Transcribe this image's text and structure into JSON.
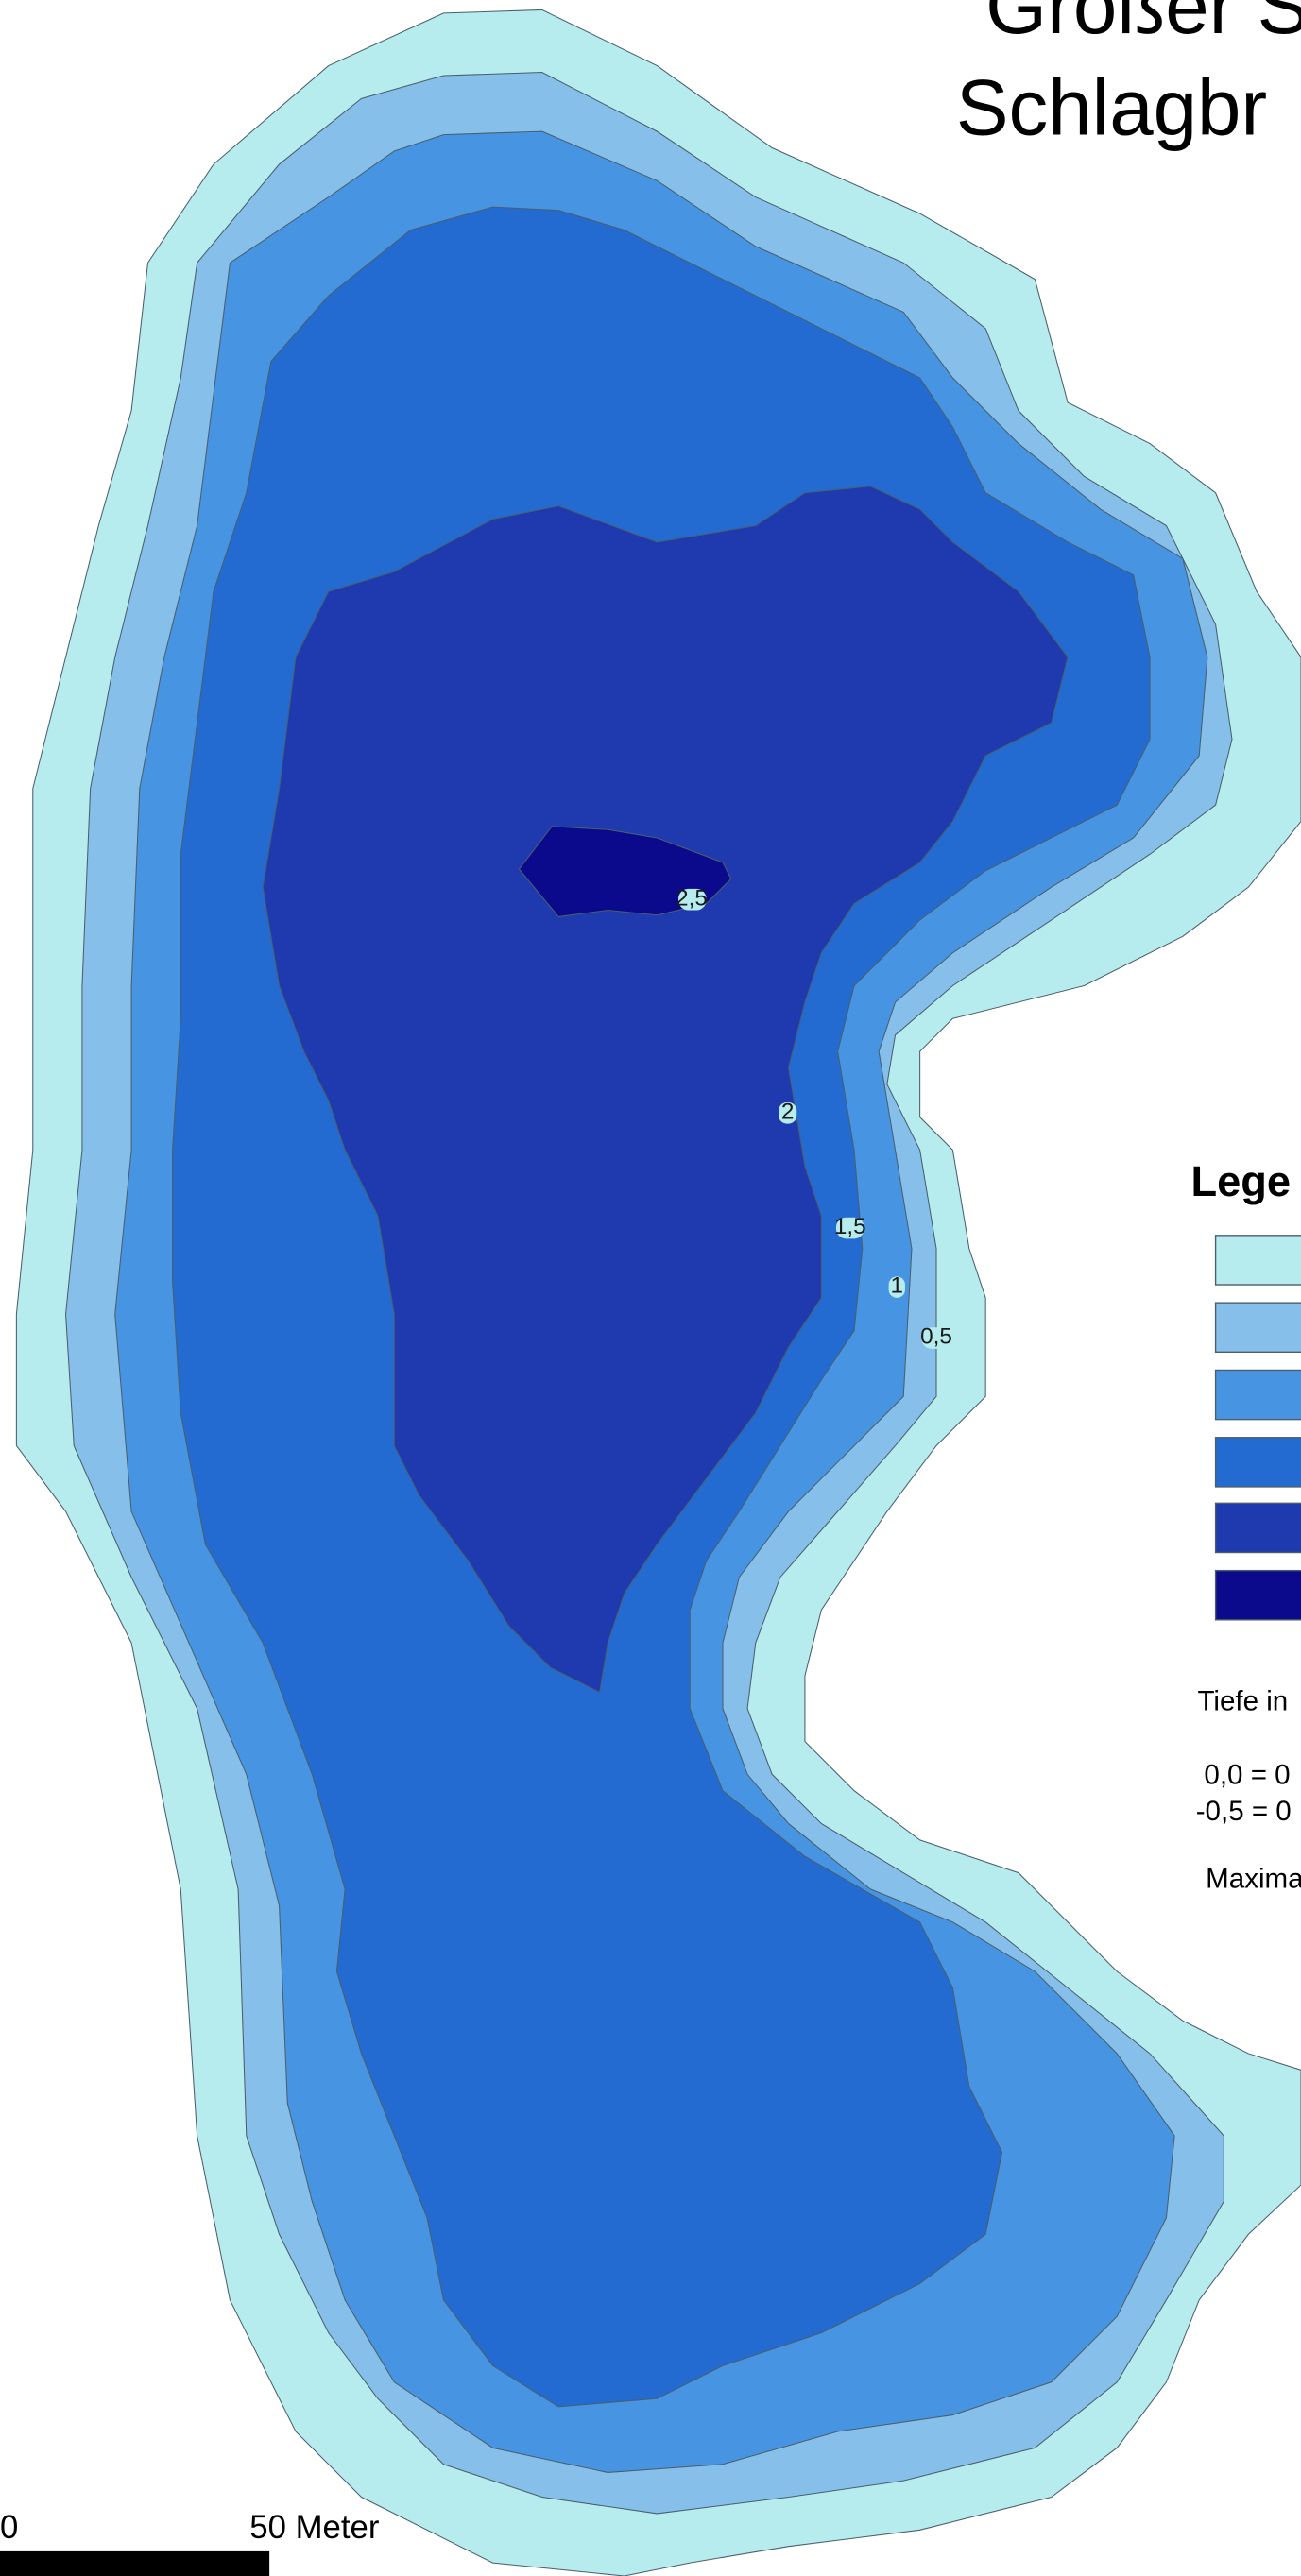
{
  "title": {
    "line1": "Großer S",
    "line2": "Schlagbr"
  },
  "legend": {
    "heading": "Lege",
    "depth_unit_label": "Tiefe in",
    "class_line_1": "0,0 = 0",
    "class_line_2": "-0,5 = 0",
    "max_depth_label": "Maxima",
    "swatch_colors": [
      "#b7ecef",
      "#85bfea",
      "#4795e2",
      "#236bd1",
      "#1f3aae",
      "#0b0a8c"
    ]
  },
  "contour_labels": [
    "2,5",
    "2",
    "1,5",
    "1",
    "0,5"
  ],
  "scale_bar": {
    "start_label": "0",
    "end_label": "50 Meter"
  },
  "colors": {
    "depth_0": "#b7ecef",
    "depth_05": "#85bfea",
    "depth_1": "#4795e2",
    "depth_15": "#236bd1",
    "depth_2": "#1f3aae",
    "depth_25": "#0b0a8c",
    "outline": "#4a5f6b"
  }
}
